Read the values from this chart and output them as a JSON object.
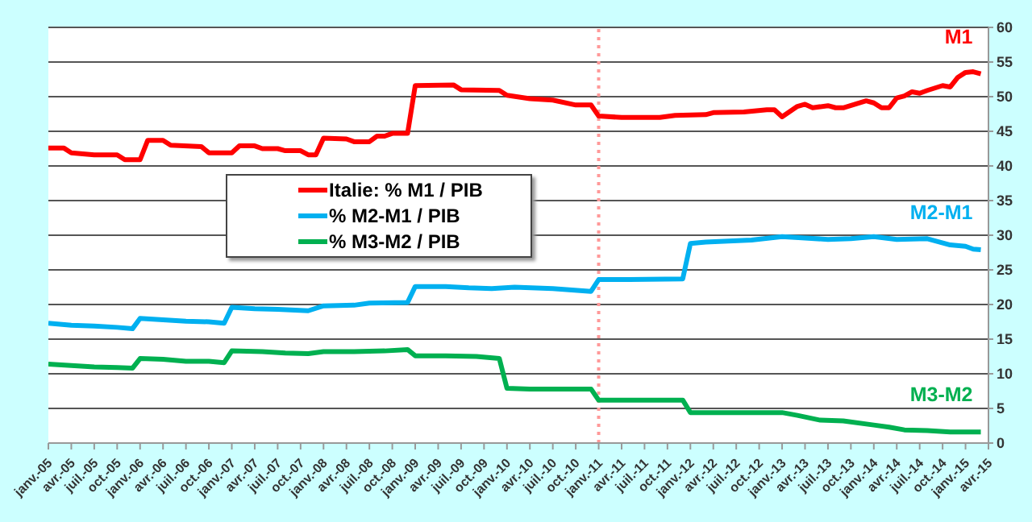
{
  "chart_data": {
    "type": "line",
    "series": [
      {
        "name": "Italie: % M1 / PIB",
        "color": "#ff0000",
        "x": [
          "2005-01",
          "2005-03",
          "2005-04",
          "2005-07",
          "2005-10",
          "2005-11",
          "2006-01",
          "2006-02",
          "2006-04",
          "2006-05",
          "2006-09",
          "2006-10",
          "2007-01",
          "2007-02",
          "2007-04",
          "2007-05",
          "2007-07",
          "2007-08",
          "2007-10",
          "2007-11",
          "2007-12",
          "2008-01",
          "2008-04",
          "2008-05",
          "2008-07",
          "2008-08",
          "2008-09",
          "2008-10",
          "2008-12",
          "2009-01",
          "2009-06",
          "2009-07",
          "2009-12",
          "2010-01",
          "2010-04",
          "2010-07",
          "2010-10",
          "2010-12",
          "2011-01",
          "2011-04",
          "2011-09",
          "2011-11",
          "2012-03",
          "2012-04",
          "2012-08",
          "2012-11",
          "2012-12",
          "2013-01",
          "2013-03",
          "2013-04",
          "2013-05",
          "2013-07",
          "2013-08",
          "2013-09",
          "2013-12",
          "2014-01",
          "2014-02",
          "2014-03",
          "2014-04",
          "2014-05",
          "2014-06",
          "2014-07",
          "2014-08",
          "2014-10",
          "2014-11",
          "2014-12",
          "2015-01",
          "2015-02",
          "2015-03"
        ],
        "values": [
          42.6,
          42.6,
          41.9,
          41.6,
          41.6,
          40.9,
          40.9,
          43.7,
          43.7,
          43.0,
          42.8,
          41.9,
          41.9,
          42.9,
          42.9,
          42.5,
          42.5,
          42.2,
          42.2,
          41.6,
          41.6,
          44.0,
          43.9,
          43.5,
          43.5,
          44.3,
          44.3,
          44.7,
          44.7,
          51.6,
          51.7,
          51.0,
          50.9,
          50.2,
          49.7,
          49.5,
          48.8,
          48.8,
          47.2,
          47.0,
          47.0,
          47.3,
          47.4,
          47.7,
          47.8,
          48.1,
          48.1,
          47.1,
          48.6,
          48.9,
          48.4,
          48.7,
          48.4,
          48.4,
          49.4,
          49.1,
          48.4,
          48.4,
          49.8,
          50.1,
          50.7,
          50.5,
          50.9,
          51.6,
          51.4,
          52.8,
          53.5,
          53.6,
          53.3
        ]
      },
      {
        "name": "% M2-M1 / PIB",
        "color": "#00b0f0",
        "x": [
          "2005-01",
          "2005-04",
          "2005-07",
          "2005-10",
          "2005-12",
          "2006-01",
          "2006-04",
          "2006-07",
          "2006-10",
          "2006-12",
          "2007-01",
          "2007-04",
          "2007-07",
          "2007-11",
          "2008-01",
          "2008-05",
          "2008-07",
          "2008-12",
          "2009-01",
          "2009-05",
          "2009-08",
          "2009-11",
          "2010-02",
          "2010-07",
          "2010-12",
          "2011-01",
          "2011-05",
          "2011-12",
          "2012-01",
          "2012-03",
          "2012-09",
          "2013-01",
          "2013-04",
          "2013-07",
          "2013-10",
          "2014-01",
          "2014-04",
          "2014-08",
          "2014-11",
          "2015-01",
          "2015-02",
          "2015-03"
        ],
        "values": [
          17.3,
          17.0,
          16.9,
          16.7,
          16.5,
          18.0,
          17.8,
          17.6,
          17.5,
          17.3,
          19.6,
          19.4,
          19.3,
          19.1,
          19.8,
          19.9,
          20.2,
          20.3,
          22.6,
          22.6,
          22.4,
          22.3,
          22.5,
          22.3,
          21.9,
          23.6,
          23.6,
          23.7,
          28.8,
          29.0,
          29.3,
          29.8,
          29.6,
          29.4,
          29.5,
          29.8,
          29.4,
          29.5,
          28.6,
          28.4,
          28.0,
          27.9
        ]
      },
      {
        "name": "% M3-M2 / PIB",
        "color": "#00b050",
        "x": [
          "2005-01",
          "2005-04",
          "2005-07",
          "2005-10",
          "2005-12",
          "2006-01",
          "2006-04",
          "2006-07",
          "2006-10",
          "2006-12",
          "2007-01",
          "2007-05",
          "2007-08",
          "2007-11",
          "2008-01",
          "2008-05",
          "2008-09",
          "2008-12",
          "2009-01",
          "2009-05",
          "2009-09",
          "2009-12",
          "2010-01",
          "2010-04",
          "2010-12",
          "2011-01",
          "2011-05",
          "2011-12",
          "2012-01",
          "2012-07",
          "2013-01",
          "2013-03",
          "2013-06",
          "2013-09",
          "2014-01",
          "2014-03",
          "2014-05",
          "2014-08",
          "2014-11",
          "2015-03"
        ],
        "values": [
          11.4,
          11.2,
          11.0,
          10.9,
          10.8,
          12.2,
          12.1,
          11.8,
          11.8,
          11.6,
          13.3,
          13.2,
          13.0,
          12.9,
          13.2,
          13.2,
          13.3,
          13.5,
          12.6,
          12.6,
          12.5,
          12.2,
          7.9,
          7.8,
          7.8,
          6.2,
          6.2,
          6.2,
          4.4,
          4.4,
          4.4,
          4.0,
          3.3,
          3.2,
          2.6,
          2.3,
          1.9,
          1.8,
          1.6,
          1.6
        ]
      }
    ],
    "annotations": [
      "M1",
      "M2-M1",
      "M3-M2"
    ],
    "ref_lines": [
      {
        "axis": "x",
        "value": "2011-01",
        "color": "#ff9999",
        "line_style": "dotted"
      }
    ],
    "xlim": [
      "2005-01",
      "2015-04"
    ],
    "xticks": [
      {
        "value": "2005-01",
        "label": "janv.-05"
      },
      {
        "value": "2005-04",
        "label": "avr.-05"
      },
      {
        "value": "2005-07",
        "label": "juil.-05"
      },
      {
        "value": "2005-10",
        "label": "oct.-05"
      },
      {
        "value": "2006-01",
        "label": "janv.-06"
      },
      {
        "value": "2006-04",
        "label": "avr.-06"
      },
      {
        "value": "2006-07",
        "label": "juil.-06"
      },
      {
        "value": "2006-10",
        "label": "oct.-06"
      },
      {
        "value": "2007-01",
        "label": "janv.-07"
      },
      {
        "value": "2007-04",
        "label": "avr.-07"
      },
      {
        "value": "2007-07",
        "label": "juil.-07"
      },
      {
        "value": "2007-10",
        "label": "oct.-07"
      },
      {
        "value": "2008-01",
        "label": "janv.-08"
      },
      {
        "value": "2008-04",
        "label": "avr.-08"
      },
      {
        "value": "2008-07",
        "label": "juil.-08"
      },
      {
        "value": "2008-10",
        "label": "oct.-08"
      },
      {
        "value": "2009-01",
        "label": "janv.-09"
      },
      {
        "value": "2009-04",
        "label": "avr.-09"
      },
      {
        "value": "2009-07",
        "label": "juil.-09"
      },
      {
        "value": "2009-10",
        "label": "oct.-09"
      },
      {
        "value": "2010-01",
        "label": "janv.-10"
      },
      {
        "value": "2010-04",
        "label": "avr.-10"
      },
      {
        "value": "2010-07",
        "label": "juil.-10"
      },
      {
        "value": "2010-10",
        "label": "oct.-10"
      },
      {
        "value": "2011-01",
        "label": "janv.-11"
      },
      {
        "value": "2011-04",
        "label": "avr.-11"
      },
      {
        "value": "2011-07",
        "label": "juil.-11"
      },
      {
        "value": "2011-10",
        "label": "oct.-11"
      },
      {
        "value": "2012-01",
        "label": "janv.-12"
      },
      {
        "value": "2012-04",
        "label": "avr.-12"
      },
      {
        "value": "2012-07",
        "label": "juil.-12"
      },
      {
        "value": "2012-10",
        "label": "oct.-12"
      },
      {
        "value": "2013-01",
        "label": "janv.-13"
      },
      {
        "value": "2013-04",
        "label": "avr.-13"
      },
      {
        "value": "2013-07",
        "label": "juil.-13"
      },
      {
        "value": "2013-10",
        "label": "oct.-13"
      },
      {
        "value": "2014-01",
        "label": "janv.-14"
      },
      {
        "value": "2014-04",
        "label": "avr.-14"
      },
      {
        "value": "2014-07",
        "label": "juil.-14"
      },
      {
        "value": "2014-10",
        "label": "oct.-14"
      },
      {
        "value": "2015-01",
        "label": "janv.-15"
      },
      {
        "value": "2015-04",
        "label": "avr.-15"
      }
    ],
    "ylim": [
      0,
      60
    ],
    "yticks": [
      0,
      5,
      10,
      15,
      20,
      25,
      30,
      35,
      40,
      45,
      50,
      55,
      60
    ],
    "grid": "y",
    "legend": "center",
    "marker": "none",
    "line_style": "solid"
  }
}
